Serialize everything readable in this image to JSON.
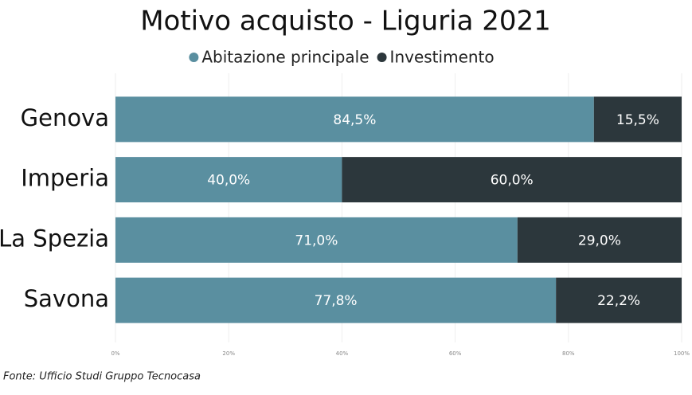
{
  "chart_data": {
    "type": "stacked_bar_horizontal",
    "title": "Motivo acquisto - Liguria 2021",
    "categories": [
      "Genova",
      "Imperia",
      "La Spezia",
      "Savona"
    ],
    "series": [
      {
        "name": "Abitazione principale",
        "color": "#5a8fa0",
        "values": [
          84.5,
          40.0,
          71.0,
          77.8
        ],
        "value_labels": [
          "84,5%",
          "40,0%",
          "71,0%",
          "77,8%"
        ]
      },
      {
        "name": "Investimento",
        "color": "#2c373c",
        "values": [
          15.5,
          60.0,
          29.0,
          22.2
        ],
        "value_labels": [
          "15,5%",
          "60,0%",
          "29,0%",
          "22,2%"
        ]
      }
    ],
    "xlim": [
      0,
      100
    ],
    "xticks": [
      {
        "value": 0,
        "label": "0%"
      },
      {
        "value": 20,
        "label": "20%"
      },
      {
        "value": 40,
        "label": "40%"
      },
      {
        "value": 60,
        "label": "60%"
      },
      {
        "value": 80,
        "label": "80%"
      },
      {
        "value": 100,
        "label": "100%"
      }
    ],
    "grid": true,
    "legend": "top",
    "source": "Fonte: Ufficio Studi Gruppo Tecnocasa"
  }
}
